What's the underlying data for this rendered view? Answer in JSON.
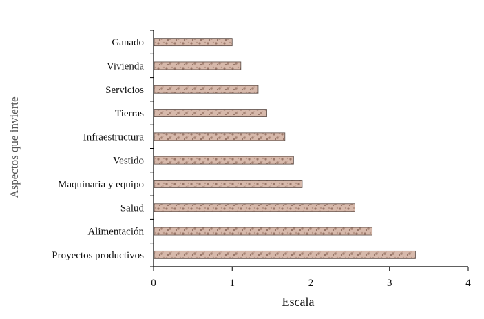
{
  "chart_data": {
    "type": "bar",
    "orientation": "horizontal",
    "categories": [
      "Ganado",
      "Vivienda",
      "Servicios",
      "Tierras",
      "Infraestructura",
      "Vestido",
      "Maquinaria y equipo",
      "Salud",
      "Alimentación",
      "Proyectos productivos"
    ],
    "values": [
      1.0,
      1.11,
      1.33,
      1.44,
      1.67,
      1.78,
      1.89,
      2.56,
      2.78,
      3.33
    ],
    "xlabel": "Escala",
    "ylabel": "Aspectos que invierte",
    "xlim": [
      0,
      4
    ],
    "xticks": [
      "0",
      "1",
      "2",
      "3",
      "4"
    ],
    "grid": false,
    "legend": "none",
    "bar_color": "#c9a494",
    "bar_texture_color": "#8a6a5e"
  }
}
